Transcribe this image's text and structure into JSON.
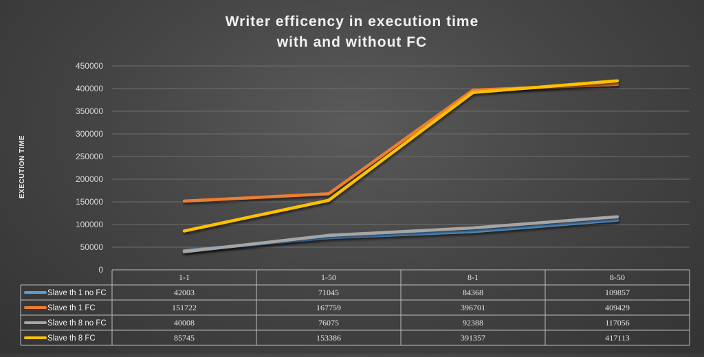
{
  "chart_data": {
    "type": "line",
    "title_lines": [
      "Writer efficency in execution time",
      "with and without FC"
    ],
    "ylabel": "EXECUTION TIME",
    "xlabel": "",
    "ylim": [
      0,
      450000
    ],
    "yticks": [
      0,
      50000,
      100000,
      150000,
      200000,
      250000,
      300000,
      350000,
      400000,
      450000
    ],
    "grid": true,
    "legend": "data-table",
    "categories": [
      "1-1",
      "1-50",
      "8-1",
      "8-50"
    ],
    "series": [
      {
        "name": "Slave th 1 no FC",
        "color": "#5b9bd5",
        "values": [
          42003,
          71045,
          84368,
          109857
        ]
      },
      {
        "name": "Slave th 1 FC",
        "color": "#ed7d31",
        "values": [
          151722,
          167759,
          396701,
          409429
        ]
      },
      {
        "name": "Slave th 8 no FC",
        "color": "#a5a5a5",
        "values": [
          40008,
          76075,
          92388,
          117056
        ]
      },
      {
        "name": "Slave th 8 FC",
        "color": "#ffc000",
        "values": [
          85745,
          153386,
          391357,
          417113
        ]
      }
    ]
  }
}
